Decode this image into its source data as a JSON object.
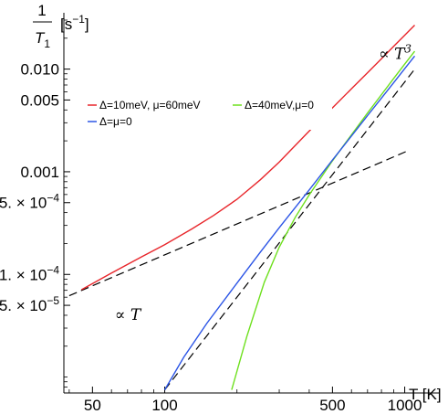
{
  "chart_data": {
    "type": "line",
    "x_scale": "log",
    "y_scale": "log",
    "xlabel": "T [K]",
    "ylabel": {
      "numerator": "1",
      "denominator": "T",
      "denominator_sub": "1",
      "unit": "[s",
      "unit_exp": "−1",
      "unit_close": "]"
    },
    "xlim": [
      38,
      1400
    ],
    "ylim": [
      7e-06,
      0.03
    ],
    "x_ticks": [
      {
        "value": 50,
        "label": "50"
      },
      {
        "value": 100,
        "label": "100"
      },
      {
        "value": 500,
        "label": "500"
      },
      {
        "value": 1000,
        "label": "1000"
      }
    ],
    "y_ticks": [
      {
        "value": 0.01,
        "label": "0.010",
        "mantissa": "",
        "exponent": ""
      },
      {
        "value": 0.005,
        "label": "0.005",
        "mantissa": "",
        "exponent": ""
      },
      {
        "value": 0.001,
        "label": "0.001",
        "mantissa": "",
        "exponent": ""
      },
      {
        "value": 0.0005,
        "label": "5. × 10",
        "mantissa": "5. × 10",
        "exponent": "−4"
      },
      {
        "value": 0.0001,
        "label": "1. × 10",
        "mantissa": "1. × 10",
        "exponent": "−4"
      },
      {
        "value": 5e-05,
        "label": "5. × 10",
        "mantissa": "5. × 10",
        "exponent": "−5"
      }
    ],
    "series": [
      {
        "name": "Δ=10meV, μ=60meV",
        "color": "#e8262b",
        "style": "solid",
        "x": [
          45,
          60,
          80,
          100,
          130,
          160,
          200,
          250,
          300,
          400,
          500,
          600,
          700,
          800,
          900,
          1000,
          1100
        ],
        "y": [
          7.1e-05,
          0.000103,
          0.000148,
          0.000195,
          0.000278,
          0.000376,
          0.000539,
          0.000833,
          0.00124,
          0.00249,
          0.00419,
          0.00643,
          0.00922,
          0.0126,
          0.0167,
          0.0214,
          0.0268
        ]
      },
      {
        "name": "Δ=40meV,μ=0",
        "color": "#6ee01e",
        "style": "solid",
        "x": [
          190,
          220,
          260,
          300,
          350,
          400,
          500,
          600,
          700,
          800,
          900,
          1000,
          1100
        ],
        "y": [
          7.5e-06,
          2.5e-05,
          8.39e-05,
          0.000184,
          0.00036,
          0.000596,
          0.00128,
          0.00229,
          0.00373,
          0.00564,
          0.00811,
          0.0112,
          0.0149
        ]
      },
      {
        "name": "Δ=μ=0",
        "color": "#2c55e6",
        "style": "solid",
        "x": [
          100,
          120,
          150,
          200,
          250,
          300,
          400,
          500,
          600,
          700,
          800,
          900,
          1000,
          1100
        ],
        "y": [
          7.5e-06,
          1.56e-05,
          3.35e-05,
          8.22e-05,
          0.000164,
          0.000285,
          0.000666,
          0.0013,
          0.00223,
          0.00352,
          0.00522,
          0.00738,
          0.0101,
          0.0134
        ]
      }
    ],
    "reference_lines": [
      {
        "name": "T³ reference",
        "color": "#000000",
        "style": "dashed",
        "x": [
          100,
          1100
        ],
        "y": [
          7.5e-06,
          0.00998
        ]
      },
      {
        "name": "T reference",
        "color": "#000000",
        "style": "dashed",
        "x": [
          40,
          1050
        ],
        "y": [
          6.2e-05,
          0.00163
        ]
      }
    ],
    "annotations": [
      {
        "text": "∝ T",
        "sup": "3",
        "x": 780,
        "y": 0.0125
      },
      {
        "text": "∝ T",
        "sup": "",
        "x": 62,
        "y": 3.6e-05
      }
    ],
    "legend": {
      "placement": "top-left",
      "entries": [
        {
          "label": "Δ=10meV, μ=60meV",
          "color": "#e8262b"
        },
        {
          "label": "Δ=40meV,μ=0",
          "color": "#6ee01e"
        },
        {
          "label": "Δ=μ=0",
          "color": "#2c55e6"
        }
      ]
    },
    "grid": false
  }
}
